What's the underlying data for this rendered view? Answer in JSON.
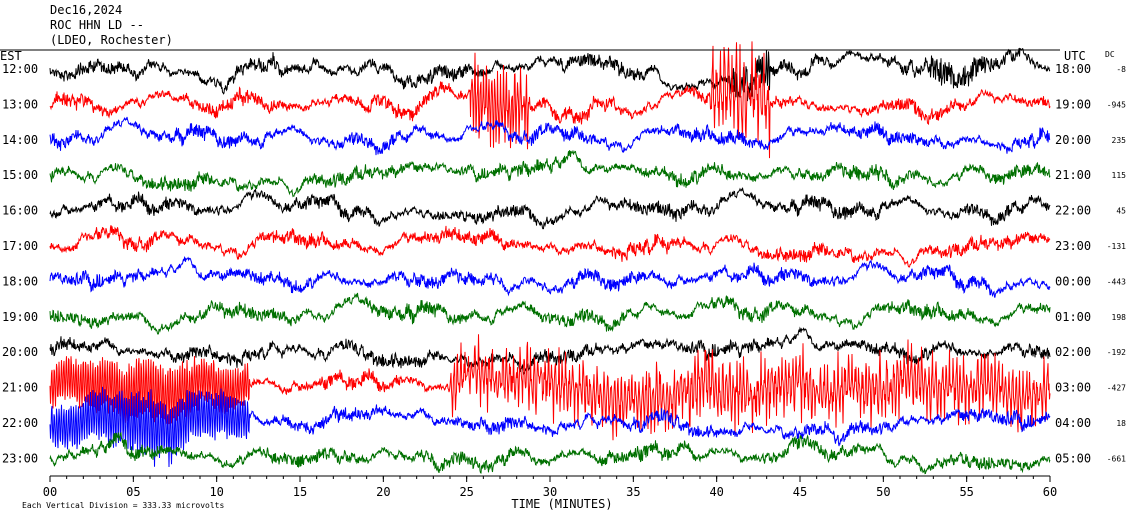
{
  "header": {
    "date": "Dec16,2024",
    "station": "ROC HHN LD --",
    "network": "(LDEO, Rochester)"
  },
  "labels": {
    "left_tz": "EST",
    "right_tz": "UTC",
    "dc": "DC",
    "time_axis": "TIME (MINUTES)",
    "scale_note": "Each Vertical Division = 333.33 microvolts"
  },
  "colors": {
    "black": "#000000",
    "red": "#ff0000",
    "blue": "#0000ff",
    "green": "#007000"
  },
  "chart_data": {
    "type": "line",
    "title": "Dec16,2024 ROC HHN LD -- (LDEO, Rochester)",
    "xlabel": "TIME (MINUTES)",
    "x_ticks": [
      "00",
      "05",
      "10",
      "15",
      "20",
      "25",
      "30",
      "35",
      "40",
      "45",
      "50",
      "55",
      "60"
    ],
    "xlim": [
      0,
      60
    ],
    "rows": [
      {
        "est": "12:00",
        "utc": "18:00",
        "dc": "-8",
        "color": "black"
      },
      {
        "est": "13:00",
        "utc": "19:00",
        "dc": "-945",
        "color": "red"
      },
      {
        "est": "14:00",
        "utc": "20:00",
        "dc": "235",
        "color": "blue"
      },
      {
        "est": "15:00",
        "utc": "21:00",
        "dc": "115",
        "color": "green"
      },
      {
        "est": "16:00",
        "utc": "22:00",
        "dc": "45",
        "color": "black"
      },
      {
        "est": "17:00",
        "utc": "23:00",
        "dc": "-131",
        "color": "red"
      },
      {
        "est": "18:00",
        "utc": "00:00",
        "dc": "-443",
        "color": "blue"
      },
      {
        "est": "19:00",
        "utc": "01:00",
        "dc": "198",
        "color": "green"
      },
      {
        "est": "20:00",
        "utc": "02:00",
        "dc": "-192",
        "color": "black"
      },
      {
        "est": "21:00",
        "utc": "03:00",
        "dc": "-427",
        "color": "red"
      },
      {
        "est": "22:00",
        "utc": "04:00",
        "dc": "18",
        "color": "blue"
      },
      {
        "est": "23:00",
        "utc": "05:00",
        "dc": "-661",
        "color": "green"
      }
    ]
  }
}
